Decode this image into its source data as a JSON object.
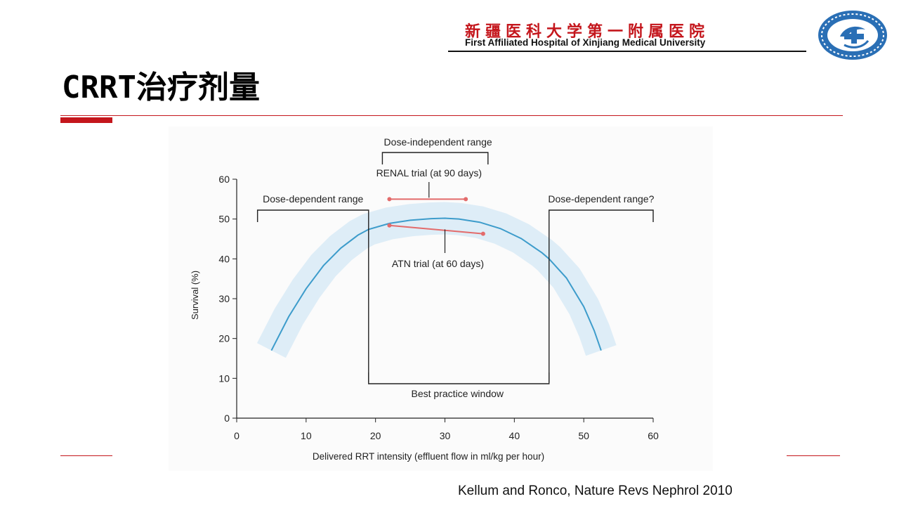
{
  "header": {
    "institution_cn": "新疆医科大学第一附属医院",
    "institution_en": "First Affiliated Hospital of Xinjiang Medical University"
  },
  "slide": {
    "title": "CRRT治疗剂量",
    "citation": "Kellum and Ronco, Nature Revs Nephrol 2010"
  },
  "colors": {
    "accent": "#c4161c",
    "curve": "#3d9ccb",
    "band": "#deedf7",
    "trial": "#e36b6b"
  },
  "chart_data": {
    "type": "line",
    "xlabel": "Delivered RRT intensity (effluent flow in ml/kg per hour)",
    "ylabel": "Survival (%)",
    "xlim": [
      0,
      60
    ],
    "ylim": [
      0,
      60
    ],
    "xticks": [
      0,
      10,
      20,
      30,
      40,
      50,
      60
    ],
    "yticks": [
      0,
      10,
      20,
      30,
      40,
      50,
      60
    ],
    "series": [
      {
        "x": [
          5,
          7.5,
          10,
          12.5,
          15,
          17.5,
          19,
          22,
          25,
          28,
          30,
          32,
          35,
          38,
          41,
          44,
          45,
          47.5,
          50,
          51.5,
          52.5
        ],
        "y": [
          17,
          25.5,
          32.5,
          38.3,
          42.7,
          46,
          47.4,
          48.9,
          49.7,
          50.1,
          50.2,
          50.0,
          49.2,
          47.6,
          45.1,
          41.5,
          40.0,
          35.2,
          28,
          22,
          17
        ]
      },
      {
        "name": "RENAL trial (at 90 days)",
        "x": [
          22,
          33
        ],
        "y": [
          55,
          55
        ]
      },
      {
        "name": "ATN trial (at 60 days)",
        "x": [
          22,
          35.5
        ],
        "y": [
          48.4,
          46.3
        ]
      }
    ],
    "annotations": [
      {
        "text": "Dose-independent range",
        "x_range": [
          22,
          36
        ]
      },
      {
        "text": "Dose-dependent range",
        "x_range": [
          3,
          19
        ]
      },
      {
        "text": "Dose-dependent range?",
        "x_range": [
          45,
          60
        ]
      },
      {
        "text": "Best practice window",
        "x_range": [
          19,
          45
        ]
      }
    ],
    "grid": false,
    "legend": "none"
  }
}
